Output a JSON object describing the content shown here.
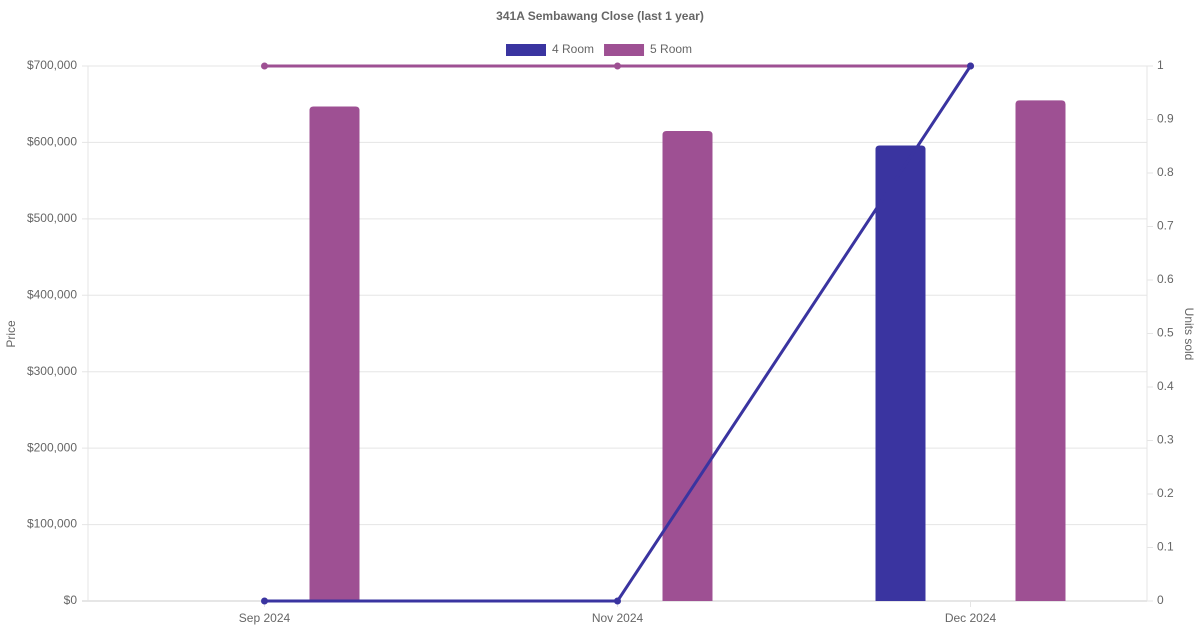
{
  "chart_data": {
    "type": "bar-line",
    "title": "341A Sembawang Close (last 1 year)",
    "categories": [
      "Sep 2024",
      "Nov 2024",
      "Dec 2024"
    ],
    "series": [
      {
        "name": "4 Room",
        "color": "#3a34a0",
        "values": [
          null,
          null,
          596000
        ],
        "units_sold": [
          0,
          0,
          1
        ]
      },
      {
        "name": "5 Room",
        "color": "#9e5093",
        "values": [
          647000,
          615000,
          655000
        ],
        "units_sold": [
          1,
          1,
          1
        ]
      }
    ],
    "y_label": "Price",
    "y2_label": "Units sold",
    "ylim": [
      0,
      700000
    ],
    "yticks": [
      {
        "value": 0,
        "label": "$0"
      },
      {
        "value": 100000,
        "label": "$100,000"
      },
      {
        "value": 200000,
        "label": "$200,000"
      },
      {
        "value": 300000,
        "label": "$300,000"
      },
      {
        "value": 400000,
        "label": "$400,000"
      },
      {
        "value": 500000,
        "label": "$500,000"
      },
      {
        "value": 600000,
        "label": "$600,000"
      },
      {
        "value": 700000,
        "label": "$700,000"
      }
    ],
    "y2lim": [
      0,
      1
    ],
    "y2ticks": [
      0,
      0.1,
      0.2,
      0.3,
      0.4,
      0.5,
      0.6,
      0.7,
      0.8,
      0.9,
      1
    ],
    "grid": true
  }
}
